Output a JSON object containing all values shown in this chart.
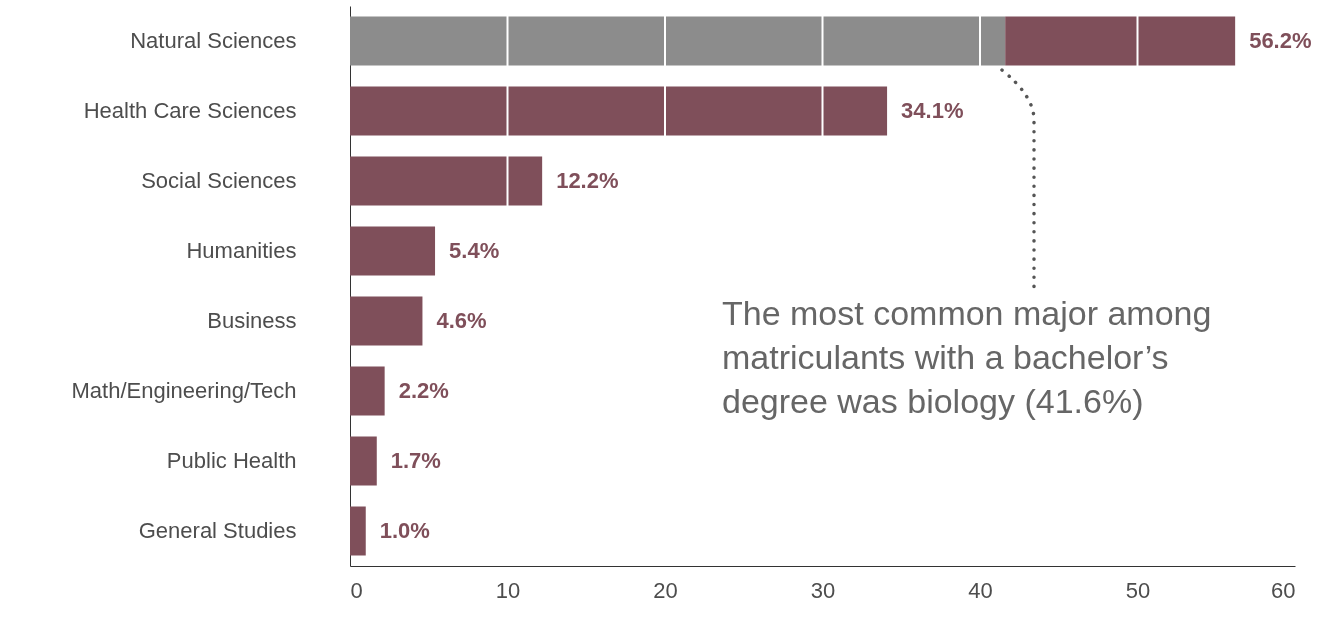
{
  "chart_data": {
    "type": "bar",
    "orientation": "horizontal",
    "stacked": true,
    "categories": [
      "Natural Sciences",
      "Health Care Sciences",
      "Social Sciences",
      "Humanities",
      "Business",
      "Math/Engineering/Tech",
      "Public Health",
      "General Studies"
    ],
    "series": [
      {
        "color": "#8c8c8c",
        "values": [
          41.6,
          null,
          null,
          null,
          null,
          null,
          null,
          null
        ]
      },
      {
        "color": "#7f4f5a",
        "values": [
          14.6,
          34.1,
          12.2,
          5.4,
          4.6,
          2.2,
          1.7,
          1.0
        ]
      }
    ],
    "totals": [
      "56.2%",
      "34.1%",
      "12.2%",
      "5.4%",
      "4.6%",
      "2.2%",
      "1.7%",
      "1.0%"
    ],
    "xlim": [
      0,
      60
    ],
    "xticks": [
      0,
      10,
      20,
      30,
      40,
      50,
      60
    ],
    "grid": "x",
    "annotations": [
      "The most common major among matriculants with a bachelor’s degree was biology (41.6%)"
    ]
  }
}
